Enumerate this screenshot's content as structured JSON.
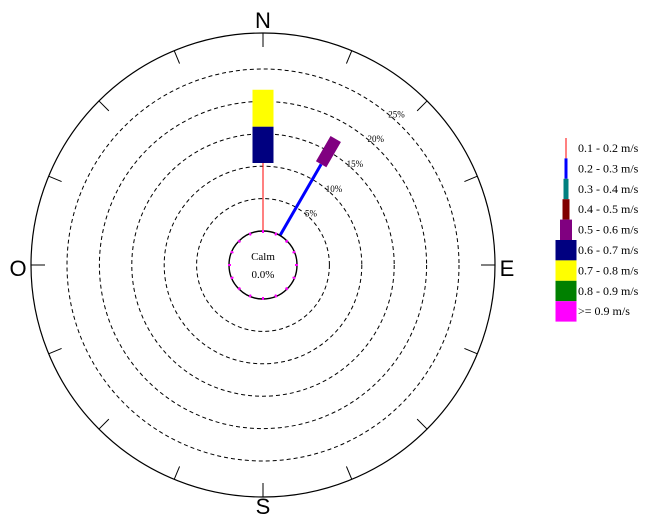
{
  "chart_data": {
    "type": "wind-rose",
    "directions": {
      "north": "N",
      "east": "E",
      "south": "S",
      "west": "O"
    },
    "rings": [
      {
        "value": 5,
        "label": "5%"
      },
      {
        "value": 10,
        "label": "10%"
      },
      {
        "value": 15,
        "label": "15%"
      },
      {
        "value": 20,
        "label": "20%"
      },
      {
        "value": 25,
        "label": "25%"
      }
    ],
    "calm": {
      "label": "Calm",
      "value_label": "0.0%",
      "value": 0.0
    },
    "speed_classes": [
      {
        "label": "0.1 - 0.2 m/s",
        "color": "#ff0000"
      },
      {
        "label": "0.2 - 0.3 m/s",
        "color": "#0000ff"
      },
      {
        "label": "0.3 - 0.4 m/s",
        "color": "#008080"
      },
      {
        "label": "0.4 - 0.5 m/s",
        "color": "#800000"
      },
      {
        "label": "0.5 - 0.6 m/s",
        "color": "#800080"
      },
      {
        "label": "0.6 - 0.7 m/s",
        "color": "#000080"
      },
      {
        "label": "0.7 - 0.8 m/s",
        "color": "#ffff00"
      },
      {
        "label": "0.8 - 0.9 m/s",
        "color": "#008000"
      },
      {
        "label": ">= 0.9 m/s",
        "color": "#ff00ff"
      }
    ],
    "series": [
      {
        "direction_deg": 0,
        "segments": [
          {
            "class_index": 0,
            "percent": 10.5
          },
          {
            "class_index": 5,
            "percent": 5.6
          },
          {
            "class_index": 6,
            "percent": 5.7
          }
        ]
      },
      {
        "direction_deg": 30,
        "segments": [
          {
            "class_index": 1,
            "percent": 12.7
          },
          {
            "class_index": 4,
            "percent": 4.5
          }
        ]
      }
    ]
  }
}
